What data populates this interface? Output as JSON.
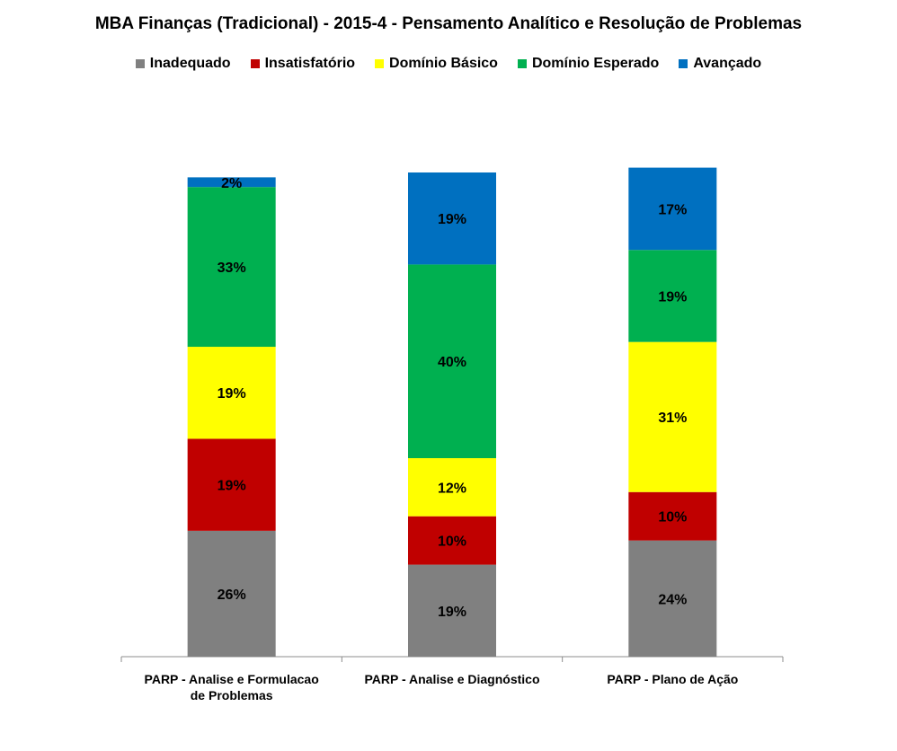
{
  "chart_data": {
    "type": "bar",
    "stacked": true,
    "title": "MBA Finanças (Tradicional) - 2015-4 - Pensamento Analítico e Resolução de Problemas",
    "legend_position": "top",
    "grid": false,
    "ylim": [
      0,
      100
    ],
    "categories": [
      [
        "PARP - Analise e Formulacao",
        "de Problemas"
      ],
      [
        "PARP - Analise e Diagnóstico"
      ],
      [
        "PARP - Plano de Ação"
      ]
    ],
    "series": [
      {
        "name": "Inadequado",
        "color": "#808080",
        "label_color": "#000000",
        "values": [
          26,
          19,
          24
        ]
      },
      {
        "name": "Insatisfatório",
        "color": "#c00000",
        "label_color": "#000000",
        "values": [
          19,
          10,
          10
        ]
      },
      {
        "name": "Domínio Básico",
        "color": "#ffff00",
        "label_color": "#000000",
        "values": [
          19,
          12,
          31
        ]
      },
      {
        "name": "Domínio Esperado",
        "color": "#00b050",
        "label_color": "#000000",
        "values": [
          33,
          40,
          19
        ]
      },
      {
        "name": "Avançado",
        "color": "#0070c0",
        "label_color": "#000000",
        "values": [
          2,
          19,
          17
        ]
      }
    ],
    "value_suffix": "%"
  }
}
